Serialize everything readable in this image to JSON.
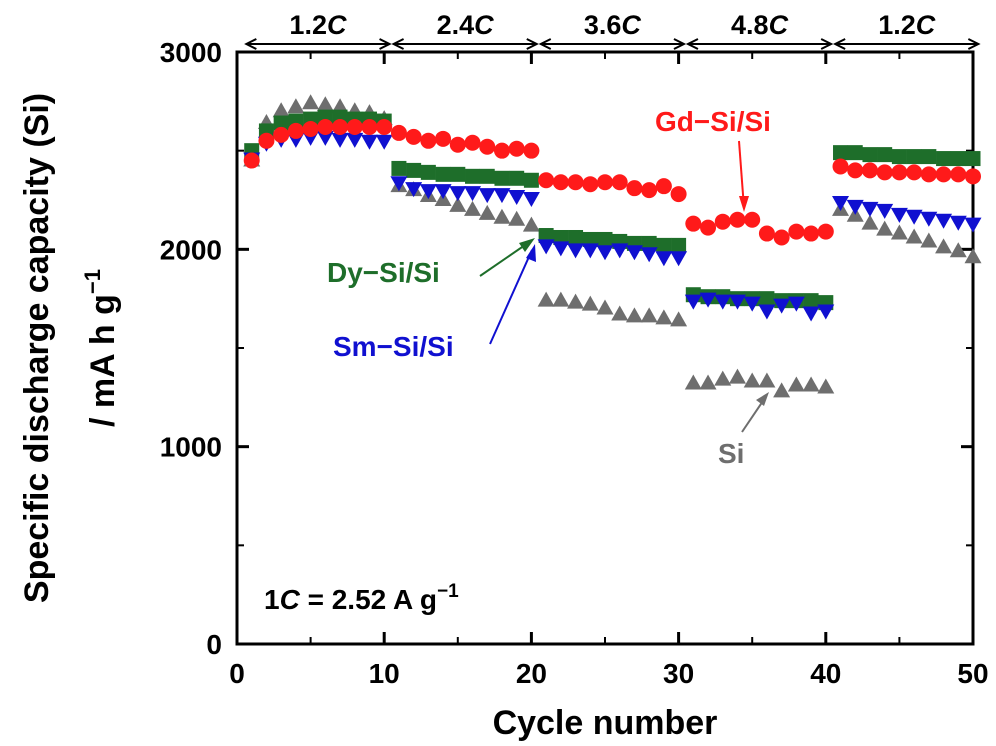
{
  "chart_data": {
    "type": "scatter",
    "xlabel": "Cycle number",
    "ylabel": "Specific discharge capacity (Si)",
    "ylabel_units": "/ mA h g",
    "ylabel_units_sup": "−1",
    "xlim": [
      0,
      50
    ],
    "ylim": [
      0,
      3000
    ],
    "x_ticks": [
      0,
      10,
      20,
      30,
      40,
      50
    ],
    "y_ticks": [
      0,
      1000,
      2000,
      3000
    ],
    "grid": false,
    "note": {
      "prefix": "1",
      "c": "C",
      "mid": " = 2.52 A g",
      "sup": "−1"
    },
    "rate_segments": [
      {
        "num": "1.2",
        "c": "C",
        "start": 0.5,
        "end": 10.5
      },
      {
        "num": "2.4",
        "c": "C",
        "start": 10.5,
        "end": 20.5
      },
      {
        "num": "3.6",
        "c": "C",
        "start": 20.5,
        "end": 30.5
      },
      {
        "num": "4.8",
        "c": "C",
        "start": 30.5,
        "end": 40.5
      },
      {
        "num": "1.2",
        "c": "C",
        "start": 40.5,
        "end": 50.5
      }
    ],
    "series": [
      {
        "name": "Si",
        "color": "#6e6e6e",
        "marker": "triangle-up",
        "x": [
          1,
          2,
          3,
          4,
          5,
          6,
          7,
          8,
          9,
          10,
          11,
          12,
          13,
          14,
          15,
          16,
          17,
          18,
          19,
          20,
          21,
          22,
          23,
          24,
          25,
          26,
          27,
          28,
          29,
          30,
          31,
          32,
          33,
          34,
          35,
          36,
          37,
          38,
          39,
          40,
          41,
          42,
          43,
          44,
          45,
          46,
          47,
          48,
          49,
          50
        ],
        "y": [
          2450,
          2640,
          2700,
          2720,
          2740,
          2730,
          2720,
          2700,
          2690,
          2660,
          2320,
          2300,
          2270,
          2250,
          2220,
          2200,
          2180,
          2160,
          2150,
          2120,
          1740,
          1740,
          1730,
          1720,
          1700,
          1670,
          1660,
          1660,
          1650,
          1640,
          1320,
          1320,
          1340,
          1350,
          1330,
          1330,
          1280,
          1310,
          1310,
          1300,
          2200,
          2170,
          2130,
          2100,
          2080,
          2060,
          2040,
          2010,
          1990,
          1960
        ]
      },
      {
        "name": "Dy−Si/Si",
        "color": "#1e6e2a",
        "marker": "square",
        "x": [
          1,
          2,
          3,
          4,
          5,
          6,
          7,
          8,
          9,
          10,
          11,
          12,
          13,
          14,
          15,
          16,
          17,
          18,
          19,
          20,
          21,
          22,
          23,
          24,
          25,
          26,
          27,
          28,
          29,
          30,
          31,
          32,
          33,
          34,
          35,
          36,
          37,
          38,
          39,
          40,
          41,
          42,
          43,
          44,
          45,
          46,
          47,
          48,
          49,
          50
        ],
        "y": [
          2500,
          2600,
          2640,
          2650,
          2660,
          2670,
          2670,
          2660,
          2660,
          2650,
          2410,
          2400,
          2390,
          2380,
          2380,
          2370,
          2370,
          2360,
          2360,
          2350,
          2070,
          2060,
          2060,
          2050,
          2050,
          2040,
          2030,
          2030,
          2020,
          2020,
          1770,
          1760,
          1760,
          1750,
          1750,
          1750,
          1740,
          1740,
          1740,
          1730,
          2490,
          2490,
          2480,
          2480,
          2470,
          2470,
          2470,
          2460,
          2460,
          2460
        ]
      },
      {
        "name": "Sm−Si/Si",
        "color": "#1010d0",
        "marker": "triangle-down",
        "x": [
          1,
          2,
          3,
          4,
          5,
          6,
          7,
          8,
          9,
          10,
          11,
          12,
          13,
          14,
          15,
          16,
          17,
          18,
          19,
          20,
          21,
          22,
          23,
          24,
          25,
          26,
          27,
          28,
          29,
          30,
          31,
          32,
          33,
          34,
          35,
          36,
          37,
          38,
          39,
          40,
          41,
          42,
          43,
          44,
          45,
          46,
          47,
          48,
          49,
          50
        ],
        "y": [
          2460,
          2540,
          2560,
          2560,
          2570,
          2570,
          2560,
          2560,
          2550,
          2550,
          2340,
          2310,
          2300,
          2300,
          2290,
          2290,
          2280,
          2280,
          2270,
          2260,
          2020,
          2010,
          2000,
          2000,
          1990,
          2000,
          1990,
          1980,
          1960,
          1960,
          1740,
          1750,
          1740,
          1740,
          1730,
          1690,
          1720,
          1730,
          1680,
          1690,
          2240,
          2220,
          2210,
          2200,
          2180,
          2170,
          2160,
          2150,
          2140,
          2130
        ]
      },
      {
        "name": "Gd−Si/Si",
        "color": "#ff1a1a",
        "marker": "circle",
        "x": [
          1,
          2,
          3,
          4,
          5,
          6,
          7,
          8,
          9,
          10,
          11,
          12,
          13,
          14,
          15,
          16,
          17,
          18,
          19,
          20,
          21,
          22,
          23,
          24,
          25,
          26,
          27,
          28,
          29,
          30,
          31,
          32,
          33,
          34,
          35,
          36,
          37,
          38,
          39,
          40,
          41,
          42,
          43,
          44,
          45,
          46,
          47,
          48,
          49,
          50
        ],
        "y": [
          2450,
          2550,
          2580,
          2600,
          2610,
          2620,
          2620,
          2620,
          2620,
          2620,
          2590,
          2570,
          2550,
          2560,
          2530,
          2540,
          2520,
          2500,
          2510,
          2500,
          2350,
          2340,
          2340,
          2330,
          2340,
          2340,
          2310,
          2300,
          2320,
          2280,
          2130,
          2110,
          2140,
          2150,
          2150,
          2080,
          2060,
          2090,
          2080,
          2090,
          2420,
          2400,
          2400,
          2390,
          2390,
          2390,
          2380,
          2380,
          2380,
          2370
        ]
      }
    ],
    "annotations": [
      {
        "series": "Gd−Si/Si",
        "text": "Gd−Si/Si",
        "color": "#ff1a1a"
      },
      {
        "series": "Dy−Si/Si",
        "text": "Dy−Si/Si",
        "color": "#1e6e2a"
      },
      {
        "series": "Sm−Si/Si",
        "text": "Sm−Si/Si",
        "color": "#1010d0"
      },
      {
        "series": "Si",
        "text": "Si",
        "color": "#6e6e6e"
      }
    ]
  }
}
